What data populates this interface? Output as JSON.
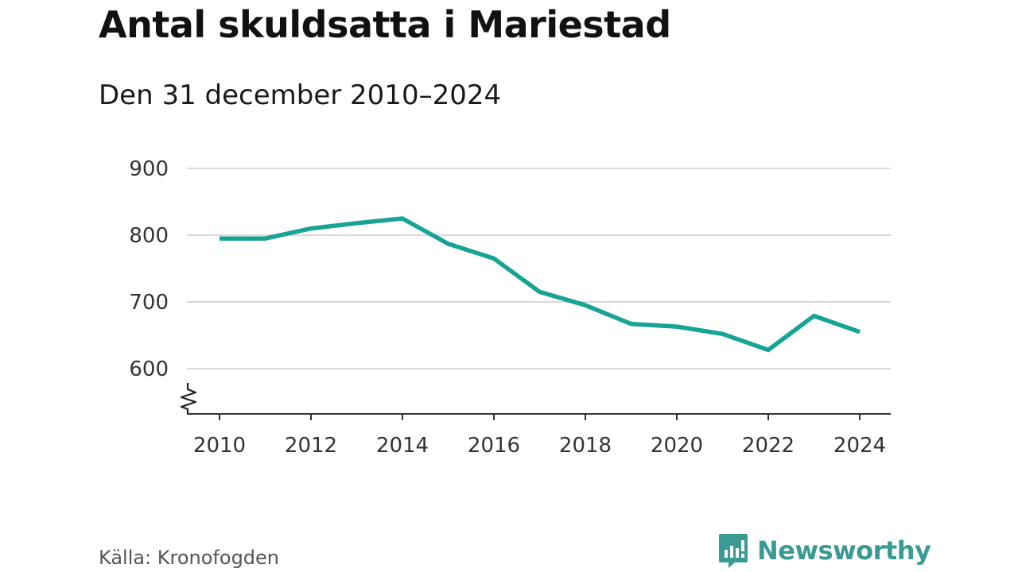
{
  "title": "Antal skuldsatta i Mariestad",
  "subtitle": "Den 31 december 2010–2024",
  "source": "Källa: Kronofogden",
  "brand": {
    "name": "Newsworthy",
    "color": "#3a9a94",
    "icon": "newsworthy-logo-icon"
  },
  "chart_data": {
    "type": "line",
    "title": "Antal skuldsatta i Mariestad",
    "xlabel": "",
    "ylabel": "",
    "x": [
      2010,
      2011,
      2012,
      2013,
      2014,
      2015,
      2016,
      2017,
      2018,
      2019,
      2020,
      2021,
      2022,
      2023,
      2024
    ],
    "series": [
      {
        "name": "Mariestad",
        "color": "#17a497",
        "values": [
          795,
          795,
          810,
          818,
          825,
          787,
          765,
          715,
          695,
          667,
          663,
          652,
          628,
          679,
          655
        ]
      }
    ],
    "ylim": [
      540,
      900
    ],
    "yticks": [
      600,
      700,
      800,
      900
    ],
    "ytick_labels": [
      "600",
      "700",
      "800",
      "900"
    ],
    "xticks": [
      2010,
      2012,
      2014,
      2016,
      2018,
      2020,
      2022,
      2024
    ],
    "xtick_labels": [
      "2010",
      "2012",
      "2014",
      "2016",
      "2018",
      "2020",
      "2022",
      "2024"
    ],
    "grid": true,
    "axis_break": true
  }
}
